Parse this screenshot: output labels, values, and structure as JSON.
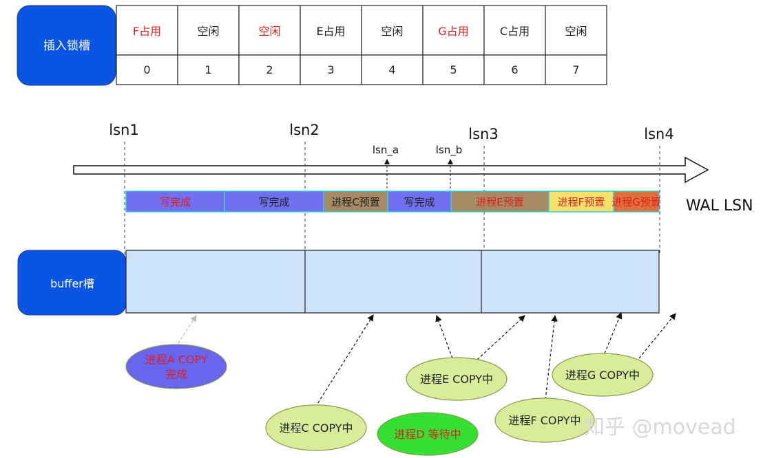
{
  "lock_slots": {
    "label": "插入锁槽",
    "slots": [
      {
        "status": "F占用",
        "index": "0",
        "color": "#e02020"
      },
      {
        "status": "空闲",
        "index": "1",
        "color": "#222222"
      },
      {
        "status": "空闲",
        "index": "2",
        "color": "#e02020"
      },
      {
        "status": "E占用",
        "index": "3",
        "color": "#222222"
      },
      {
        "status": "空闲",
        "index": "4",
        "color": "#222222"
      },
      {
        "status": "G占用",
        "index": "5",
        "color": "#e02020"
      },
      {
        "status": "C占用",
        "index": "6",
        "color": "#222222"
      },
      {
        "status": "空闲",
        "index": "7",
        "color": "#222222"
      }
    ]
  },
  "lsn_axis": {
    "markers": [
      {
        "text": "lsn1"
      },
      {
        "text": "lsn2"
      },
      {
        "text": "lsn3"
      },
      {
        "text": "lsn4"
      }
    ],
    "sub_markers": [
      {
        "text": "lsn_a"
      },
      {
        "text": "lsn_b"
      }
    ]
  },
  "wal_lsn": {
    "label": "WAL LSN",
    "segments": [
      {
        "text": "写完成",
        "fill": "#6f6ff0",
        "text_color": "#e02020"
      },
      {
        "text": "写完成",
        "fill": "#6f6ff0",
        "text_color": "#222222"
      },
      {
        "text": "进程C预置",
        "fill": "#a58a63",
        "text_color": "#222222"
      },
      {
        "text": "写完成",
        "fill": "#6f6ff0",
        "text_color": "#222222"
      },
      {
        "text": "进程E预置",
        "fill": "#a58a63",
        "text_color": "#e02020"
      },
      {
        "text": "进程F预置",
        "fill": "#f7e16b",
        "text_color": "#e02020"
      },
      {
        "text": "进程G预置",
        "fill": "#e0703a",
        "text_color": "#e02020"
      }
    ]
  },
  "buffer": {
    "label": "buffer槽"
  },
  "processes": [
    {
      "text_lines": [
        "进程A COPY",
        "完成"
      ],
      "fill": "#6666ee",
      "text_color": "#e02020"
    },
    {
      "text_lines": [
        "进程C COPY中"
      ],
      "fill": "#d9ec9a",
      "text_color": "#222222"
    },
    {
      "text_lines": [
        "进程D 等待中"
      ],
      "fill": "#33e033",
      "text_color": "#e02020"
    },
    {
      "text_lines": [
        "进程E COPY中"
      ],
      "fill": "#d9ec9a",
      "text_color": "#222222"
    },
    {
      "text_lines": [
        "进程F COPY中"
      ],
      "fill": "#d9ec9a",
      "text_color": "#222222"
    },
    {
      "text_lines": [
        "进程G COPY中"
      ],
      "fill": "#d9ec9a",
      "text_color": "#222222"
    }
  ],
  "watermark": "知乎 @movead",
  "colors": {
    "label_box": "#0a55e6",
    "buffer_fill": "#cfe4fb"
  }
}
